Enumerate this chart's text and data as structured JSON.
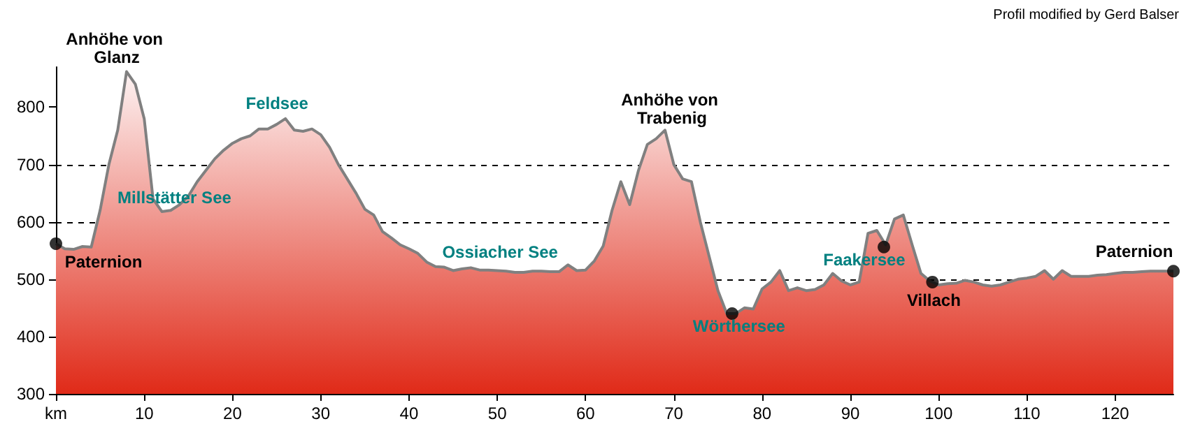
{
  "chart_data": {
    "type": "area",
    "x": [
      0,
      1,
      2,
      3,
      4,
      5,
      6,
      7,
      8,
      9,
      10,
      11,
      12,
      13,
      14,
      15,
      16,
      17,
      18,
      19,
      20,
      21,
      22,
      23,
      24,
      25,
      26,
      27,
      28,
      29,
      30,
      31,
      32,
      33,
      34,
      35,
      36,
      37,
      38,
      39,
      40,
      41,
      42,
      43,
      44,
      45,
      46,
      47,
      48,
      49,
      50,
      51,
      52,
      53,
      54,
      55,
      56,
      57,
      58,
      59,
      60,
      61,
      62,
      63,
      64,
      65,
      66,
      67,
      68,
      69,
      70,
      71,
      72,
      73,
      74,
      75,
      76,
      77,
      78,
      79,
      80,
      81,
      82,
      83,
      84,
      85,
      86,
      87,
      88,
      89,
      90,
      91,
      92,
      93,
      94,
      95,
      96,
      97,
      98,
      99,
      100,
      101,
      102,
      103,
      104,
      105,
      106,
      107,
      108,
      109,
      110,
      111,
      112,
      113,
      114,
      115,
      116,
      117,
      118,
      119,
      120,
      121,
      122,
      123,
      124,
      125,
      126.6
    ],
    "series": [
      {
        "color": "#e02a18",
        "values": [
          562,
          553,
          552,
          557,
          556,
          620,
          700,
          760,
          862,
          840,
          780,
          640,
          618,
          620,
          630,
          645,
          670,
          690,
          710,
          725,
          737,
          745,
          750,
          762,
          762,
          770,
          780,
          760,
          758,
          762,
          752,
          730,
          700,
          675,
          650,
          622,
          612,
          583,
          572,
          560,
          553,
          545,
          530,
          522,
          521,
          515,
          518,
          520,
          516,
          516,
          515,
          514,
          512,
          512,
          514,
          514,
          513,
          513,
          525,
          515,
          516,
          532,
          558,
          620,
          670,
          630,
          690,
          735,
          745,
          760,
          700,
          675,
          670,
          600,
          540,
          480,
          440,
          440,
          450,
          448,
          483,
          495,
          515,
          480,
          485,
          480,
          482,
          490,
          510,
          497,
          490,
          495,
          580,
          585,
          560,
          605,
          612,
          560,
          510,
          497,
          490,
          492,
          493,
          498,
          495,
          490,
          488,
          490,
          495,
          500,
          502,
          505,
          515,
          500,
          515,
          505,
          505,
          505,
          507,
          508,
          510,
          512,
          512,
          513,
          514,
          514,
          514
        ]
      },
      {
        "type": "scatter",
        "color": "#000000",
        "x": [
          0,
          76.6,
          93.8,
          99.3,
          126.6
        ],
        "values": [
          562,
          440,
          556,
          495,
          514
        ]
      }
    ],
    "xlim": [
      0,
      126.6
    ],
    "xticks": [
      {
        "value": 0,
        "label": "km"
      },
      10,
      20,
      30,
      40,
      50,
      60,
      70,
      80,
      90,
      100,
      110,
      120
    ],
    "ylim": [
      300,
      870
    ],
    "yticks": [
      300,
      400,
      500,
      600,
      700,
      800
    ],
    "grid": "y",
    "annotations": [
      {
        "text": "Paternion",
        "x": 0,
        "y": 562
      },
      {
        "text": "Anhöhe von Glanz",
        "x": 8,
        "y": 862
      },
      {
        "text": "Millstätter See",
        "x": 12,
        "y": 618
      },
      {
        "text": "Feldsee",
        "x": 26,
        "y": 780
      },
      {
        "text": "Ossiacher See",
        "x": 50,
        "y": 515
      },
      {
        "text": "Anhöhe von Trabenig",
        "x": 69,
        "y": 760
      },
      {
        "text": "Wörthersee",
        "x": 76.6,
        "y": 440
      },
      {
        "text": "Faakersee",
        "x": 93.8,
        "y": 556
      },
      {
        "text": "Villach",
        "x": 99.3,
        "y": 495
      },
      {
        "text": "Paternion",
        "x": 126.6,
        "y": 514
      },
      "Profil modified by Gerd Balser"
    ]
  }
}
